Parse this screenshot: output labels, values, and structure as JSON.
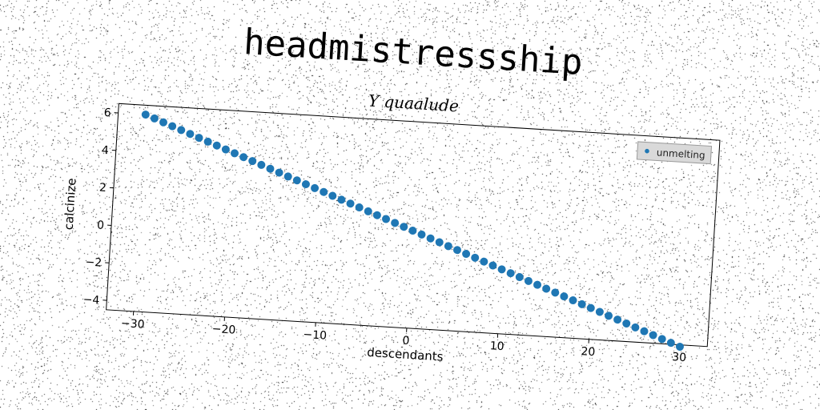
{
  "chart_data": {
    "type": "scatter",
    "title": "headmistressship",
    "subtitle": "Y quaalude",
    "xlabel": "descendants",
    "ylabel": "calcinize",
    "xlim": [
      -33,
      33
    ],
    "ylim": [
      -4.5,
      6.5
    ],
    "x_ticks": [
      -30,
      -20,
      -10,
      0,
      10,
      20,
      30
    ],
    "y_ticks": [
      -4,
      -2,
      0,
      2,
      4,
      6
    ],
    "x_tick_labels": [
      "−30",
      "−20",
      "−10",
      "0",
      "10",
      "20",
      "30"
    ],
    "y_tick_labels": [
      "−4",
      "−2",
      "0",
      "2",
      "4",
      "6"
    ],
    "grid": false,
    "legend_position": "top-right",
    "series": [
      {
        "name": "unmelting",
        "color": "#1f77b4",
        "marker": "circle",
        "x_start": -30,
        "x_end": 30,
        "y_start": 6,
        "y_end": -4.6,
        "point_count": 61
      }
    ]
  }
}
